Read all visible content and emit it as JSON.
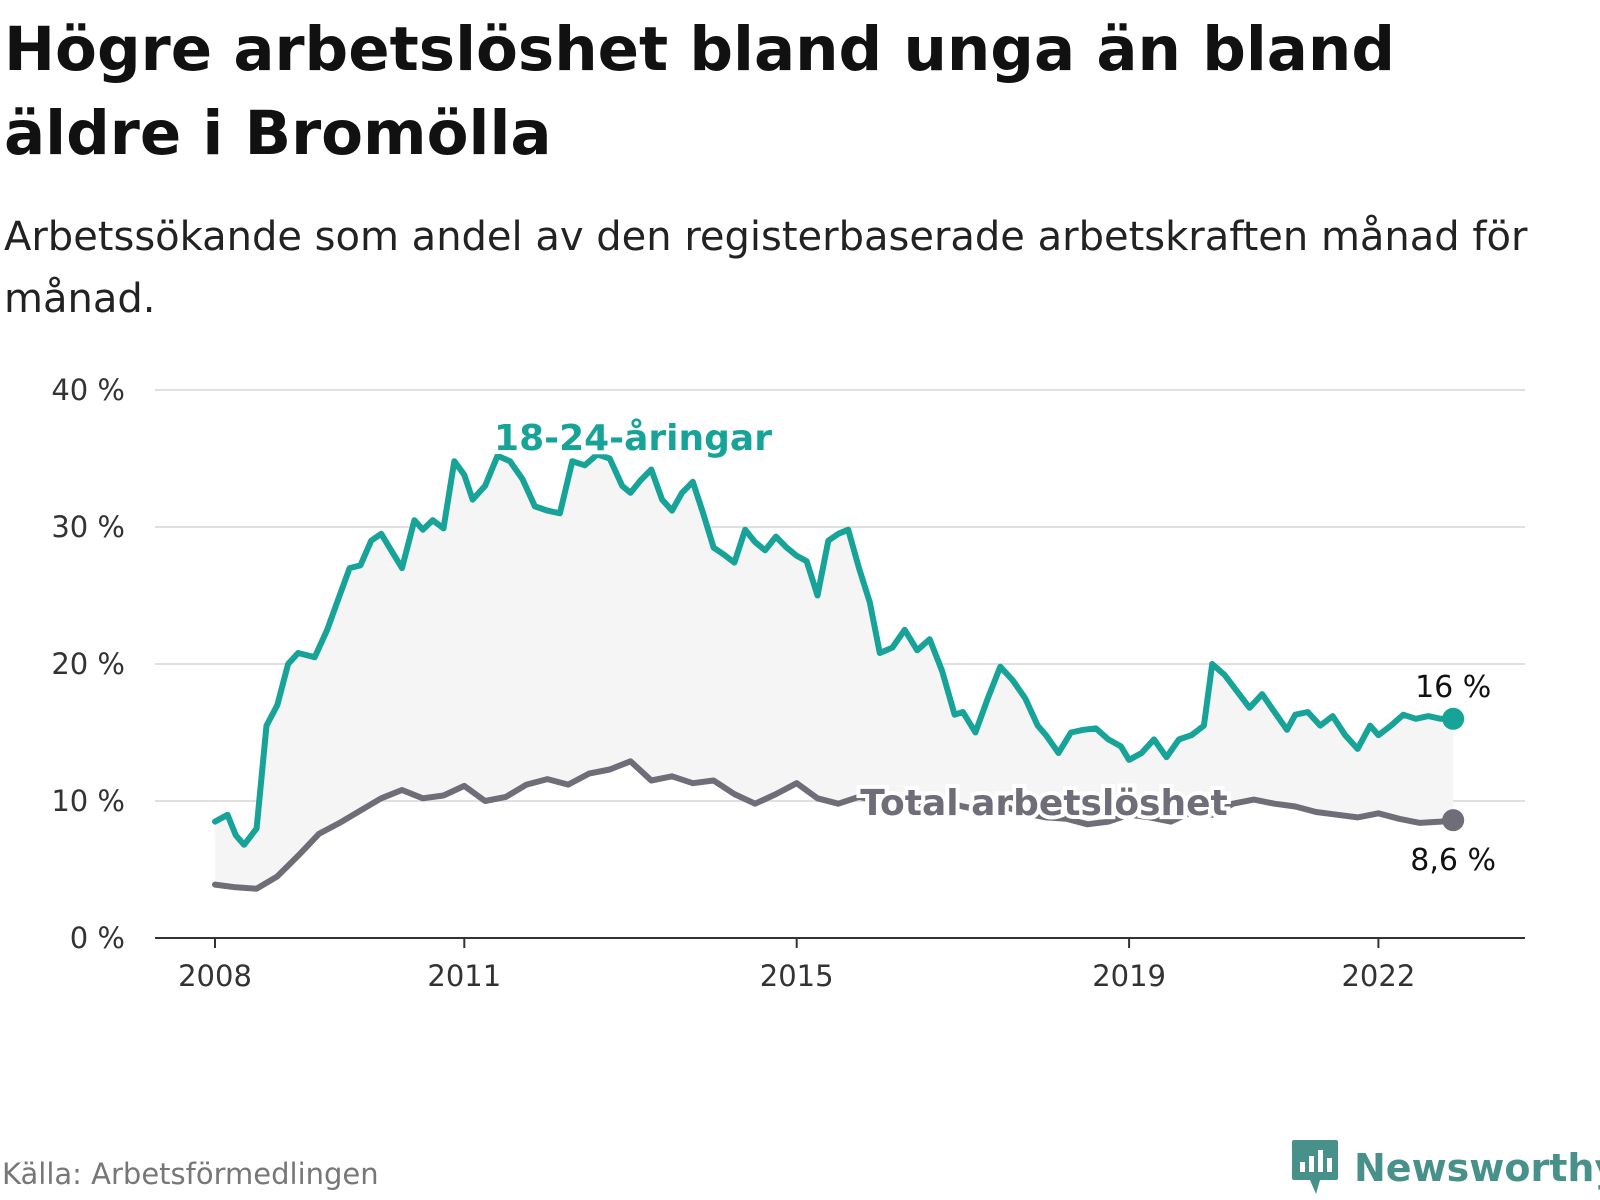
{
  "title": "Högre arbetslöshet bland unga än bland äldre i Bromölla",
  "subtitle": "Arbetssökande som andel av den registerbaserade arbetskraften månad för månad.",
  "source": "Källa: Arbetsförmedlingen",
  "brand": "Newsworthy",
  "colors": {
    "youth": "#17a398",
    "total": "#6f6e78",
    "grid": "#e0e0e0",
    "axis": "#333333",
    "fill": "#f5f5f5",
    "brand": "#47918a"
  },
  "chart_data": {
    "type": "line",
    "ylim": [
      0,
      40
    ],
    "yticks": [
      0,
      10,
      20,
      30,
      40
    ],
    "ytick_labels": [
      "0 %",
      "10 %",
      "20 %",
      "30 %",
      "40 %"
    ],
    "xlim": [
      2008,
      2023.9
    ],
    "xticks": [
      2008,
      2011,
      2015,
      2019,
      2022
    ],
    "xtick_labels": [
      "2008",
      "2011",
      "2015",
      "2019",
      "2022"
    ],
    "series": [
      {
        "name": "18-24-åringar",
        "label": "18-24-åringar",
        "end_label": "16 %",
        "x": [
          2008.0,
          2008.15,
          2008.25,
          2008.35,
          2008.5,
          2008.62,
          2008.75,
          2008.88,
          2009.0,
          2009.2,
          2009.35,
          2009.5,
          2009.62,
          2009.75,
          2009.88,
          2010.0,
          2010.15,
          2010.25,
          2010.4,
          2010.5,
          2010.62,
          2010.75,
          2010.88,
          2011.0,
          2011.1,
          2011.25,
          2011.4,
          2011.55,
          2011.7,
          2011.85,
          2012.0,
          2012.15,
          2012.3,
          2012.45,
          2012.6,
          2012.75,
          2012.9,
          2013.0,
          2013.12,
          2013.25,
          2013.38,
          2013.5,
          2013.62,
          2013.75,
          2013.88,
          2014.0,
          2014.12,
          2014.25,
          2014.38,
          2014.5,
          2014.62,
          2014.75,
          2014.88,
          2015.0,
          2015.12,
          2015.25,
          2015.38,
          2015.5,
          2015.62,
          2015.75,
          2015.88,
          2016.0,
          2016.15,
          2016.3,
          2016.45,
          2016.6,
          2016.75,
          2016.9,
          2017.0,
          2017.15,
          2017.3,
          2017.45,
          2017.6,
          2017.75,
          2017.9,
          2018.0,
          2018.15,
          2018.3,
          2018.45,
          2018.6,
          2018.75,
          2018.9,
          2019.0,
          2019.15,
          2019.3,
          2019.45,
          2019.6,
          2019.75,
          2019.9,
          2020.0,
          2020.15,
          2020.3,
          2020.45,
          2020.6,
          2020.75,
          2020.9,
          2021.0,
          2021.15,
          2021.3,
          2021.45,
          2021.6,
          2021.75,
          2021.9,
          2022.0,
          2022.15,
          2022.3,
          2022.45,
          2022.6,
          2022.75,
          2022.9
        ],
        "values": [
          8.5,
          9.0,
          7.5,
          6.8,
          8.0,
          15.5,
          17.0,
          20.0,
          20.8,
          20.5,
          22.5,
          25.0,
          27.0,
          27.2,
          29.0,
          29.5,
          28.0,
          27.0,
          30.5,
          29.8,
          30.5,
          29.9,
          34.8,
          33.8,
          32.0,
          33.0,
          35.2,
          34.8,
          33.5,
          31.5,
          31.2,
          31.0,
          34.8,
          34.5,
          35.3,
          35.0,
          33.0,
          32.5,
          33.4,
          34.2,
          32.0,
          31.2,
          32.5,
          33.3,
          30.9,
          28.5,
          28.0,
          27.4,
          29.8,
          28.9,
          28.3,
          29.3,
          28.5,
          27.9,
          27.5,
          25.0,
          29.0,
          29.5,
          29.8,
          27.0,
          24.5,
          20.8,
          21.2,
          22.5,
          21.0,
          21.8,
          19.5,
          16.3,
          16.5,
          15.0,
          17.5,
          19.8,
          18.8,
          17.5,
          15.5,
          14.8,
          13.5,
          15.0,
          15.2,
          15.3,
          14.5,
          14.0,
          13.0,
          13.5,
          14.5,
          13.2,
          14.5,
          14.8,
          15.5,
          20.0,
          19.2,
          18.0,
          16.8,
          17.8,
          16.5,
          15.2,
          16.3,
          16.5,
          15.5,
          16.2,
          14.8,
          13.8,
          15.5,
          14.8,
          15.5,
          16.3,
          16.0,
          16.2,
          16.0,
          16.0
        ]
      },
      {
        "name": "Total arbetslöshet",
        "label": "Total arbetslöshet",
        "end_label": "8,6 %",
        "x": [
          2008.0,
          2008.25,
          2008.5,
          2008.75,
          2009.0,
          2009.25,
          2009.5,
          2009.75,
          2010.0,
          2010.25,
          2010.5,
          2010.75,
          2011.0,
          2011.25,
          2011.5,
          2011.75,
          2012.0,
          2012.25,
          2012.5,
          2012.75,
          2013.0,
          2013.25,
          2013.5,
          2013.75,
          2014.0,
          2014.25,
          2014.5,
          2014.75,
          2015.0,
          2015.25,
          2015.5,
          2015.75,
          2016.0,
          2016.25,
          2016.5,
          2016.75,
          2017.0,
          2017.25,
          2017.5,
          2017.75,
          2018.0,
          2018.25,
          2018.5,
          2018.75,
          2019.0,
          2019.25,
          2019.5,
          2019.75,
          2020.0,
          2020.25,
          2020.5,
          2020.75,
          2021.0,
          2021.25,
          2021.5,
          2021.75,
          2022.0,
          2022.25,
          2022.5,
          2022.75,
          2022.9
        ],
        "values": [
          3.9,
          3.7,
          3.6,
          4.5,
          6.0,
          7.6,
          8.4,
          9.3,
          10.2,
          10.8,
          10.2,
          10.4,
          11.1,
          10.0,
          10.3,
          11.2,
          11.6,
          11.2,
          12.0,
          12.3,
          12.9,
          11.5,
          11.8,
          11.3,
          11.5,
          10.5,
          9.8,
          10.5,
          11.3,
          10.2,
          9.8,
          10.3,
          10.0,
          10.2,
          9.8,
          10.0,
          9.6,
          9.3,
          9.6,
          9.1,
          8.8,
          8.7,
          8.3,
          8.5,
          9.0,
          8.8,
          8.5,
          9.2,
          9.0,
          9.8,
          10.1,
          9.8,
          9.6,
          9.2,
          9.0,
          8.8,
          9.1,
          8.7,
          8.4,
          8.5,
          8.6
        ]
      }
    ]
  }
}
